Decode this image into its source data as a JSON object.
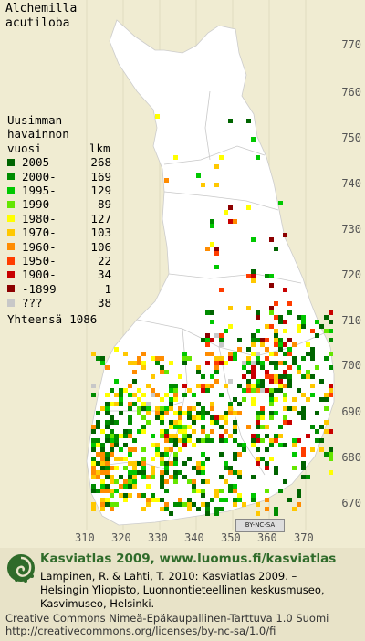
{
  "title": {
    "line1": "Alchemilla",
    "line2": "acutiloba"
  },
  "legend": {
    "header1": "Uusimman",
    "header2": "havainnon",
    "header3_left": "vuosi",
    "header3_right": "lkm",
    "rows": [
      {
        "label": "2005-",
        "count": "268",
        "color": "#006400"
      },
      {
        "label": "2000-",
        "count": "169",
        "color": "#008c00"
      },
      {
        "label": "1995-",
        "count": "129",
        "color": "#00c800"
      },
      {
        "label": "1990-",
        "count": "89",
        "color": "#64e600"
      },
      {
        "label": "1980-",
        "count": "127",
        "color": "#ffff00"
      },
      {
        "label": "1970-",
        "count": "103",
        "color": "#ffc800"
      },
      {
        "label": "1960-",
        "count": "106",
        "color": "#ff8c00"
      },
      {
        "label": "1950-",
        "count": "22",
        "color": "#ff3c00"
      },
      {
        "label": "1900-",
        "count": "34",
        "color": "#c80000"
      },
      {
        "label": "-1899",
        "count": "1",
        "color": "#8c0000"
      },
      {
        "label": "???",
        "count": "38",
        "color": "#c8c8c8"
      }
    ],
    "total_label": "Yhteensä",
    "total_count": "1086"
  },
  "lat_ticks": [
    "770",
    "760",
    "750",
    "740",
    "730",
    "720",
    "710",
    "700",
    "690",
    "680",
    "670"
  ],
  "lon_ticks": [
    "310",
    "320",
    "330",
    "340",
    "350",
    "360",
    "370"
  ],
  "license_badge": "BY-NC-SA",
  "footer": {
    "title": "Kasviatlas 2009, www.luomus.fi/kasviatlas",
    "citation_line1": "Lampinen, R. & Lahti, T. 2010: Kasviatlas 2009. –",
    "citation_line2": "Helsingin Yliopisto, Luonnontieteellinen keskusmuseo,",
    "citation_line3": "Kasvimuseo, Helsinki.",
    "license_line1": "Creative Commons Nimeä-Epäkaupallinen-Tarttuva 1.0 Suomi",
    "license_line2": "http://creativecommons.org/licenses/by-nc-sa/1.0/fi"
  },
  "colors": {
    "land": "#ffffff",
    "background": "#f0ecd2",
    "footer_bg": "#e8e3c8",
    "brand_green": "#2f6b2a"
  }
}
